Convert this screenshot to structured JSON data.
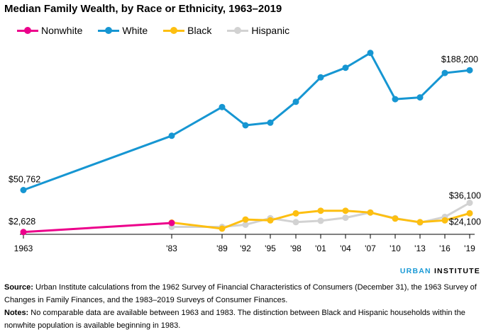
{
  "title": "Median Family Wealth, by Race or Ethnicity, 1963–2019",
  "legend": [
    {
      "label": "Nonwhite",
      "color": "#ec008b"
    },
    {
      "label": "White",
      "color": "#1696d2"
    },
    {
      "label": "Black",
      "color": "#fdbf11"
    },
    {
      "label": "Hispanic",
      "color": "#d2d2d2"
    }
  ],
  "branding": {
    "part1": "URBAN",
    "part2": "INSTITUTE"
  },
  "source": {
    "label": "Source:",
    "text": "Urban Institute calculations from the 1962 Survey of Financial Characteristics of Consumers (December 31), the 1963 Survey of Changes in Family Finances, and the 1983–2019 Surveys of Consumer Finances."
  },
  "notes": {
    "label": "Notes:",
    "text": "No comparable data are available between 1963 and 1983. The distinction between Black and Hispanic households within the nonwhite population is available beginning in 1983."
  },
  "chart_data": {
    "type": "line",
    "title": "Median Family Wealth, by Race or Ethnicity, 1963–2019",
    "xlabel": "",
    "ylabel": "",
    "x_ticks": [
      {
        "year": 1963,
        "label": "1963"
      },
      {
        "year": 1983,
        "label": "'83"
      },
      {
        "year": 1989,
        "label": "'89"
      },
      {
        "year": 1992,
        "label": "'92"
      },
      {
        "year": 1995,
        "label": "'95"
      },
      {
        "year": 1998,
        "label": "'98"
      },
      {
        "year": 2001,
        "label": "'01"
      },
      {
        "year": 2004,
        "label": "'04"
      },
      {
        "year": 2007,
        "label": "'07"
      },
      {
        "year": 2010,
        "label": "'10"
      },
      {
        "year": 2013,
        "label": "'13"
      },
      {
        "year": 2016,
        "label": "'16"
      },
      {
        "year": 2019,
        "label": "'19"
      }
    ],
    "ylim": [
      0,
      220000
    ],
    "grid": false,
    "legend_position": "top-left",
    "series": [
      {
        "name": "Nonwhite",
        "color": "#ec008b",
        "points": [
          [
            1963,
            2628
          ],
          [
            1983,
            13000
          ]
        ]
      },
      {
        "name": "White",
        "color": "#1696d2",
        "points": [
          [
            1963,
            50762
          ],
          [
            1983,
            113000
          ],
          [
            1989,
            146000
          ],
          [
            1992,
            125000
          ],
          [
            1995,
            128000
          ],
          [
            1998,
            152000
          ],
          [
            2001,
            180000
          ],
          [
            2004,
            191000
          ],
          [
            2007,
            208000
          ],
          [
            2010,
            155000
          ],
          [
            2013,
            157000
          ],
          [
            2016,
            185000
          ],
          [
            2019,
            188200
          ]
        ]
      },
      {
        "name": "Black",
        "color": "#fdbf11",
        "points": [
          [
            1983,
            13500
          ],
          [
            1989,
            6500
          ],
          [
            1992,
            17000
          ],
          [
            1995,
            16000
          ],
          [
            1998,
            24000
          ],
          [
            2001,
            27000
          ],
          [
            2004,
            27000
          ],
          [
            2007,
            25000
          ],
          [
            2010,
            18000
          ],
          [
            2013,
            14000
          ],
          [
            2016,
            16000
          ],
          [
            2019,
            24100
          ]
        ]
      },
      {
        "name": "Hispanic",
        "color": "#d2d2d2",
        "points": [
          [
            1983,
            8500
          ],
          [
            1989,
            8500
          ],
          [
            1992,
            11000
          ],
          [
            1995,
            18500
          ],
          [
            1998,
            14000
          ],
          [
            2001,
            15500
          ],
          [
            2004,
            19000
          ],
          [
            2007,
            25000
          ],
          [
            2010,
            18500
          ],
          [
            2013,
            13500
          ],
          [
            2016,
            20000
          ],
          [
            2019,
            36100
          ]
        ]
      }
    ],
    "annotations": [
      {
        "text": "$50,762",
        "series": "White",
        "year": 1963
      },
      {
        "text": "$2,628",
        "series": "Nonwhite",
        "year": 1963
      },
      {
        "text": "$188,200",
        "series": "White",
        "year": 2019
      },
      {
        "text": "$36,100",
        "series": "Hispanic",
        "year": 2019
      },
      {
        "text": "$24,100",
        "series": "Black",
        "year": 2019
      }
    ]
  }
}
